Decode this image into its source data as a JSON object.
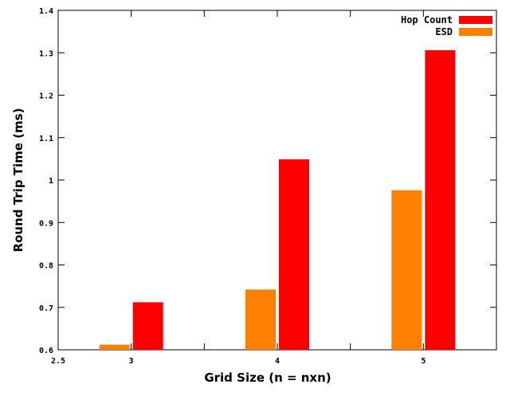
{
  "chart_data": {
    "type": "bar",
    "title": "",
    "xlabel": "Grid Size (n = nxn)",
    "ylabel": "Round Trip Time (ms)",
    "xlim": [
      2.5,
      5.5
    ],
    "ylim": [
      0.6,
      1.4
    ],
    "x_ticks": [
      "2.5",
      "3",
      "4",
      "5"
    ],
    "y_ticks": [
      "0.6",
      "0.7",
      "0.8",
      "0.9",
      "1",
      "1.1",
      "1.2",
      "1.3",
      "1.4"
    ],
    "categories": [
      "3",
      "4",
      "5"
    ],
    "series": [
      {
        "name": "ESD",
        "color": "#ff8000",
        "values": [
          0.612,
          0.742,
          0.976
        ]
      },
      {
        "name": "Hop Count",
        "color": "#ff0000",
        "values": [
          0.712,
          1.049,
          1.306
        ]
      }
    ],
    "legend": {
      "position": "top-right",
      "order": [
        "Hop Count",
        "ESD"
      ]
    },
    "grid": false
  }
}
